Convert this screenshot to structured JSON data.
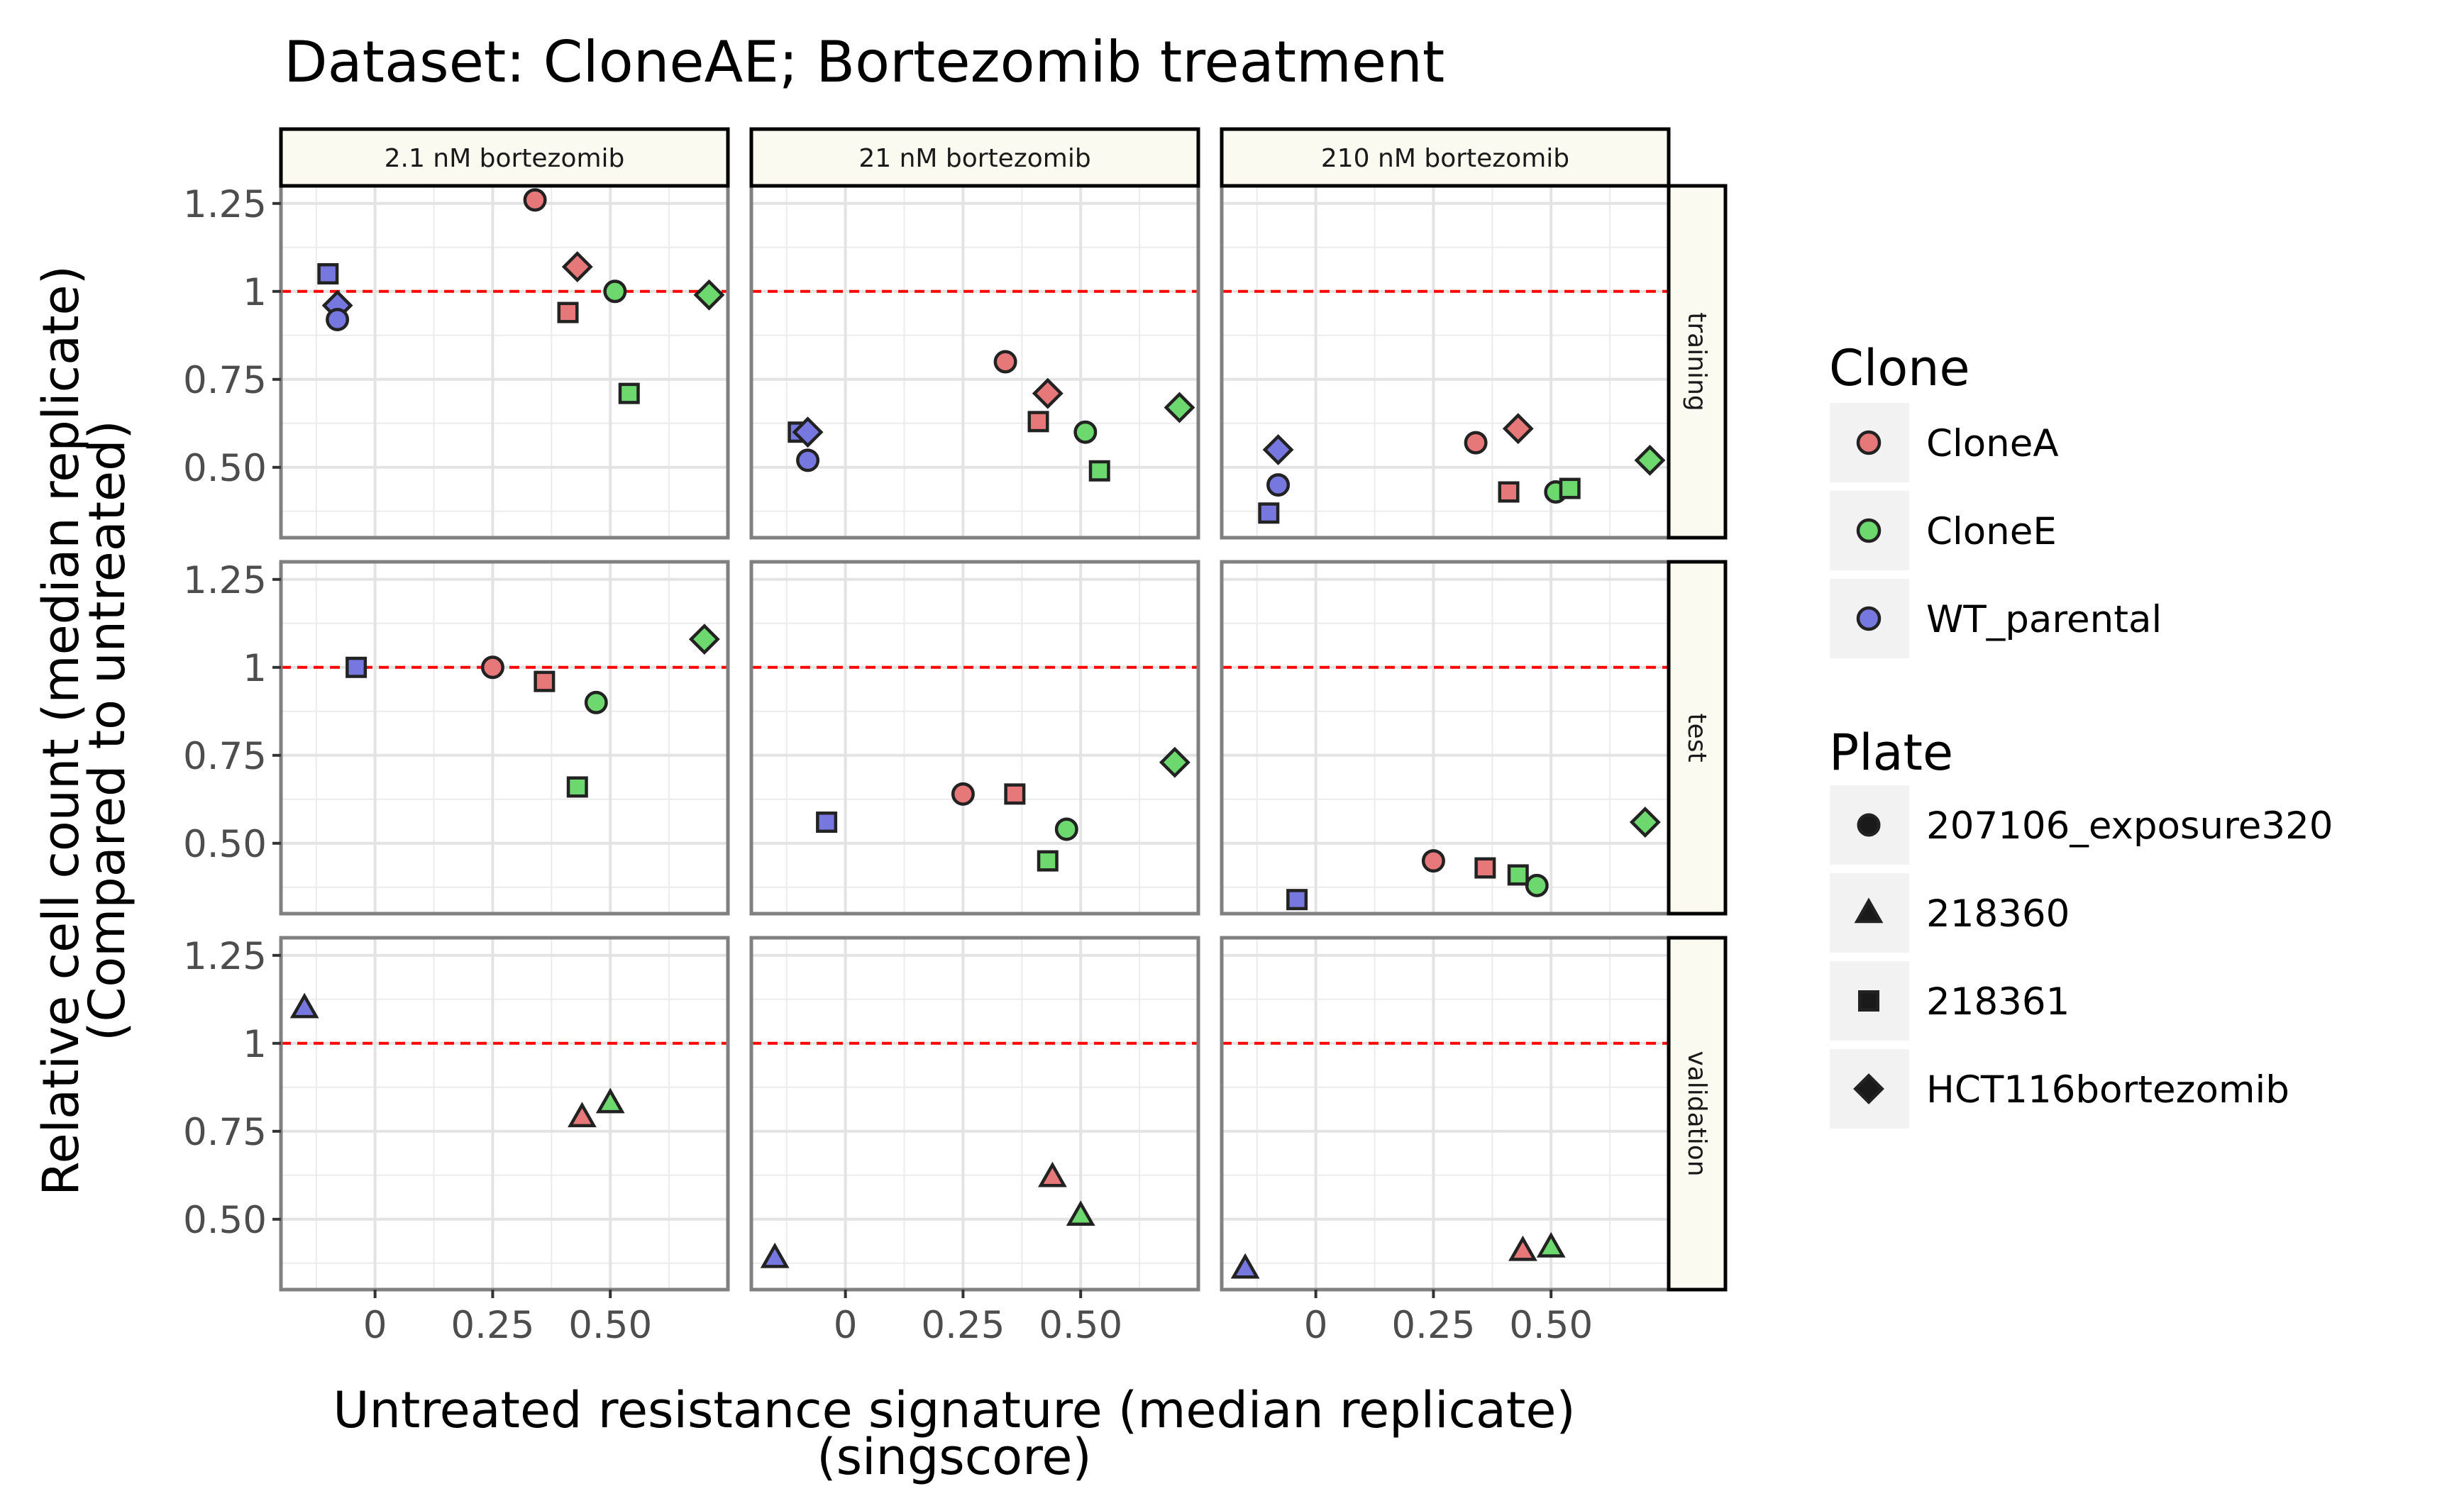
{
  "chart_data": {
    "type": "scatter",
    "title": "Dataset: CloneAE; Bortezomib treatment",
    "xlabel": [
      "Untreated resistance signature (median replicate)",
      "(singscore)"
    ],
    "ylabel": [
      "Relative cell count (median replicate)",
      "(Compared to untreated)"
    ],
    "xlim": [
      -0.2,
      0.75
    ],
    "ylim": [
      0.3,
      1.3
    ],
    "x_ticks": [
      0,
      0.25,
      0.5
    ],
    "x_tick_labels": [
      "0",
      "0.25",
      "0.50"
    ],
    "y_ticks": [
      0.5,
      0.75,
      1,
      1.25
    ],
    "y_tick_labels": [
      "0.50",
      "0.75",
      "1",
      "1.25"
    ],
    "reference_line": {
      "y": 1,
      "color": "#ff0000",
      "style": "dashed"
    },
    "grid": true,
    "facet_columns": [
      "2.1 nM bortezomib",
      "21 nM bortezomib",
      "210 nM bortezomib"
    ],
    "facet_rows": [
      "training",
      "test",
      "validation"
    ],
    "legend": {
      "placement": "right",
      "clone_title": "Clone",
      "clones": [
        {
          "name": "CloneA",
          "color": "#e7787a"
        },
        {
          "name": "CloneE",
          "color": "#6dd86d"
        },
        {
          "name": "WT_parental",
          "color": "#7777e0"
        }
      ],
      "plate_title": "Plate",
      "plates": [
        {
          "name": "207106_exposure320",
          "shape": "circle"
        },
        {
          "name": "218360",
          "shape": "triangle"
        },
        {
          "name": "218361",
          "shape": "square"
        },
        {
          "name": "HCT116bortezomib",
          "shape": "diamond"
        }
      ]
    },
    "points": [
      {
        "row": "training",
        "col": "2.1 nM bortezomib",
        "clone": "CloneA",
        "plate": "207106_exposure320",
        "x": 0.34,
        "y": 1.26
      },
      {
        "row": "training",
        "col": "2.1 nM bortezomib",
        "clone": "CloneA",
        "plate": "HCT116bortezomib",
        "x": 0.43,
        "y": 1.07
      },
      {
        "row": "training",
        "col": "2.1 nM bortezomib",
        "clone": "CloneA",
        "plate": "218361",
        "x": 0.41,
        "y": 0.94
      },
      {
        "row": "training",
        "col": "2.1 nM bortezomib",
        "clone": "CloneE",
        "plate": "207106_exposure320",
        "x": 0.51,
        "y": 1.0
      },
      {
        "row": "training",
        "col": "2.1 nM bortezomib",
        "clone": "CloneE",
        "plate": "HCT116bortezomib",
        "x": 0.71,
        "y": 0.99
      },
      {
        "row": "training",
        "col": "2.1 nM bortezomib",
        "clone": "CloneE",
        "plate": "218361",
        "x": 0.54,
        "y": 0.71
      },
      {
        "row": "training",
        "col": "2.1 nM bortezomib",
        "clone": "WT_parental",
        "plate": "218361",
        "x": -0.1,
        "y": 1.05
      },
      {
        "row": "training",
        "col": "2.1 nM bortezomib",
        "clone": "WT_parental",
        "plate": "HCT116bortezomib",
        "x": -0.08,
        "y": 0.96
      },
      {
        "row": "training",
        "col": "2.1 nM bortezomib",
        "clone": "WT_parental",
        "plate": "207106_exposure320",
        "x": -0.08,
        "y": 0.92
      },
      {
        "row": "training",
        "col": "21 nM bortezomib",
        "clone": "CloneA",
        "plate": "207106_exposure320",
        "x": 0.34,
        "y": 0.8
      },
      {
        "row": "training",
        "col": "21 nM bortezomib",
        "clone": "CloneA",
        "plate": "HCT116bortezomib",
        "x": 0.43,
        "y": 0.71
      },
      {
        "row": "training",
        "col": "21 nM bortezomib",
        "clone": "CloneA",
        "plate": "218361",
        "x": 0.41,
        "y": 0.63
      },
      {
        "row": "training",
        "col": "21 nM bortezomib",
        "clone": "CloneE",
        "plate": "207106_exposure320",
        "x": 0.51,
        "y": 0.6
      },
      {
        "row": "training",
        "col": "21 nM bortezomib",
        "clone": "CloneE",
        "plate": "HCT116bortezomib",
        "x": 0.71,
        "y": 0.67
      },
      {
        "row": "training",
        "col": "21 nM bortezomib",
        "clone": "CloneE",
        "plate": "218361",
        "x": 0.54,
        "y": 0.49
      },
      {
        "row": "training",
        "col": "21 nM bortezomib",
        "clone": "WT_parental",
        "plate": "218361",
        "x": -0.1,
        "y": 0.6
      },
      {
        "row": "training",
        "col": "21 nM bortezomib",
        "clone": "WT_parental",
        "plate": "HCT116bortezomib",
        "x": -0.08,
        "y": 0.6
      },
      {
        "row": "training",
        "col": "21 nM bortezomib",
        "clone": "WT_parental",
        "plate": "207106_exposure320",
        "x": -0.08,
        "y": 0.52
      },
      {
        "row": "training",
        "col": "210 nM bortezomib",
        "clone": "CloneA",
        "plate": "207106_exposure320",
        "x": 0.34,
        "y": 0.57
      },
      {
        "row": "training",
        "col": "210 nM bortezomib",
        "clone": "CloneA",
        "plate": "HCT116bortezomib",
        "x": 0.43,
        "y": 0.61
      },
      {
        "row": "training",
        "col": "210 nM bortezomib",
        "clone": "CloneA",
        "plate": "218361",
        "x": 0.41,
        "y": 0.43
      },
      {
        "row": "training",
        "col": "210 nM bortezomib",
        "clone": "CloneE",
        "plate": "207106_exposure320",
        "x": 0.51,
        "y": 0.43
      },
      {
        "row": "training",
        "col": "210 nM bortezomib",
        "clone": "CloneE",
        "plate": "HCT116bortezomib",
        "x": 0.71,
        "y": 0.52
      },
      {
        "row": "training",
        "col": "210 nM bortezomib",
        "clone": "CloneE",
        "plate": "218361",
        "x": 0.54,
        "y": 0.44
      },
      {
        "row": "training",
        "col": "210 nM bortezomib",
        "clone": "WT_parental",
        "plate": "218361",
        "x": -0.1,
        "y": 0.37
      },
      {
        "row": "training",
        "col": "210 nM bortezomib",
        "clone": "WT_parental",
        "plate": "HCT116bortezomib",
        "x": -0.08,
        "y": 0.55
      },
      {
        "row": "training",
        "col": "210 nM bortezomib",
        "clone": "WT_parental",
        "plate": "207106_exposure320",
        "x": -0.08,
        "y": 0.45
      },
      {
        "row": "test",
        "col": "2.1 nM bortezomib",
        "clone": "CloneA",
        "plate": "207106_exposure320",
        "x": 0.25,
        "y": 1.0
      },
      {
        "row": "test",
        "col": "2.1 nM bortezomib",
        "clone": "CloneA",
        "plate": "218361",
        "x": 0.36,
        "y": 0.96
      },
      {
        "row": "test",
        "col": "2.1 nM bortezomib",
        "clone": "CloneE",
        "plate": "207106_exposure320",
        "x": 0.47,
        "y": 0.9
      },
      {
        "row": "test",
        "col": "2.1 nM bortezomib",
        "clone": "CloneE",
        "plate": "218361",
        "x": 0.43,
        "y": 0.66
      },
      {
        "row": "test",
        "col": "2.1 nM bortezomib",
        "clone": "CloneE",
        "plate": "HCT116bortezomib",
        "x": 0.7,
        "y": 1.08
      },
      {
        "row": "test",
        "col": "2.1 nM bortezomib",
        "clone": "WT_parental",
        "plate": "218361",
        "x": -0.04,
        "y": 1.0
      },
      {
        "row": "test",
        "col": "21 nM bortezomib",
        "clone": "CloneA",
        "plate": "207106_exposure320",
        "x": 0.25,
        "y": 0.64
      },
      {
        "row": "test",
        "col": "21 nM bortezomib",
        "clone": "CloneA",
        "plate": "218361",
        "x": 0.36,
        "y": 0.64
      },
      {
        "row": "test",
        "col": "21 nM bortezomib",
        "clone": "CloneE",
        "plate": "207106_exposure320",
        "x": 0.47,
        "y": 0.54
      },
      {
        "row": "test",
        "col": "21 nM bortezomib",
        "clone": "CloneE",
        "plate": "218361",
        "x": 0.43,
        "y": 0.45
      },
      {
        "row": "test",
        "col": "21 nM bortezomib",
        "clone": "CloneE",
        "plate": "HCT116bortezomib",
        "x": 0.7,
        "y": 0.73
      },
      {
        "row": "test",
        "col": "21 nM bortezomib",
        "clone": "WT_parental",
        "plate": "218361",
        "x": -0.04,
        "y": 0.56
      },
      {
        "row": "test",
        "col": "210 nM bortezomib",
        "clone": "CloneA",
        "plate": "207106_exposure320",
        "x": 0.25,
        "y": 0.45
      },
      {
        "row": "test",
        "col": "210 nM bortezomib",
        "clone": "CloneA",
        "plate": "218361",
        "x": 0.36,
        "y": 0.43
      },
      {
        "row": "test",
        "col": "210 nM bortezomib",
        "clone": "CloneE",
        "plate": "207106_exposure320",
        "x": 0.47,
        "y": 0.38
      },
      {
        "row": "test",
        "col": "210 nM bortezomib",
        "clone": "CloneE",
        "plate": "218361",
        "x": 0.43,
        "y": 0.41
      },
      {
        "row": "test",
        "col": "210 nM bortezomib",
        "clone": "CloneE",
        "plate": "HCT116bortezomib",
        "x": 0.7,
        "y": 0.56
      },
      {
        "row": "test",
        "col": "210 nM bortezomib",
        "clone": "WT_parental",
        "plate": "218361",
        "x": -0.04,
        "y": 0.34
      },
      {
        "row": "validation",
        "col": "2.1 nM bortezomib",
        "clone": "WT_parental",
        "plate": "218360",
        "x": -0.15,
        "y": 1.1
      },
      {
        "row": "validation",
        "col": "2.1 nM bortezomib",
        "clone": "CloneA",
        "plate": "218360",
        "x": 0.44,
        "y": 0.79
      },
      {
        "row": "validation",
        "col": "2.1 nM bortezomib",
        "clone": "CloneE",
        "plate": "218360",
        "x": 0.5,
        "y": 0.83
      },
      {
        "row": "validation",
        "col": "21 nM bortezomib",
        "clone": "WT_parental",
        "plate": "218360",
        "x": -0.15,
        "y": 0.39
      },
      {
        "row": "validation",
        "col": "21 nM bortezomib",
        "clone": "CloneA",
        "plate": "218360",
        "x": 0.44,
        "y": 0.62
      },
      {
        "row": "validation",
        "col": "21 nM bortezomib",
        "clone": "CloneE",
        "plate": "218360",
        "x": 0.5,
        "y": 0.51
      },
      {
        "row": "validation",
        "col": "210 nM bortezomib",
        "clone": "WT_parental",
        "plate": "218360",
        "x": -0.15,
        "y": 0.36
      },
      {
        "row": "validation",
        "col": "210 nM bortezomib",
        "clone": "CloneA",
        "plate": "218360",
        "x": 0.44,
        "y": 0.41
      },
      {
        "row": "validation",
        "col": "210 nM bortezomib",
        "clone": "CloneE",
        "plate": "218360",
        "x": 0.5,
        "y": 0.42
      }
    ]
  }
}
